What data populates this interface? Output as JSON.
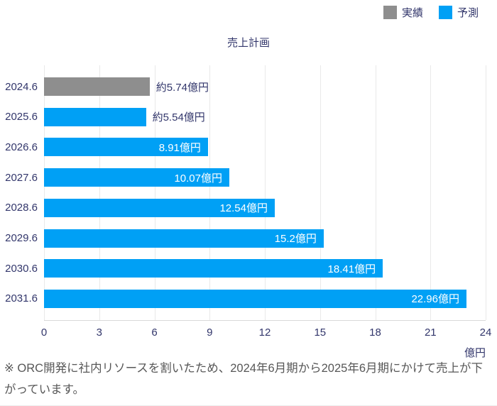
{
  "chart_data": {
    "type": "bar",
    "orientation": "horizontal",
    "title": "売上計画",
    "categories": [
      "2024.6",
      "2025.6",
      "2026.6",
      "2027.6",
      "2028.6",
      "2029.6",
      "2030.6",
      "2031.6"
    ],
    "bars": [
      {
        "category": "2024.6",
        "value": 5.74,
        "label": "約5.74億円",
        "series": "実績",
        "label_position": "outside"
      },
      {
        "category": "2025.6",
        "value": 5.54,
        "label": "約5.54億円",
        "series": "予測",
        "label_position": "outside"
      },
      {
        "category": "2026.6",
        "value": 8.91,
        "label": "8.91億円",
        "series": "予測",
        "label_position": "inside"
      },
      {
        "category": "2027.6",
        "value": 10.07,
        "label": "10.07億円",
        "series": "予測",
        "label_position": "inside"
      },
      {
        "category": "2028.6",
        "value": 12.54,
        "label": "12.54億円",
        "series": "予測",
        "label_position": "inside"
      },
      {
        "category": "2029.6",
        "value": 15.2,
        "label": "15.2億円",
        "series": "予測",
        "label_position": "inside"
      },
      {
        "category": "2030.6",
        "value": 18.41,
        "label": "18.41億円",
        "series": "予測",
        "label_position": "inside"
      },
      {
        "category": "2031.6",
        "value": 22.96,
        "label": "22.96億円",
        "series": "予測",
        "label_position": "inside"
      }
    ],
    "series": [
      {
        "name": "実績",
        "color": "#8e8e8e"
      },
      {
        "name": "予測",
        "color": "#00a0f5"
      }
    ],
    "x_ticks": [
      0,
      3,
      6,
      9,
      12,
      15,
      18,
      21,
      24
    ],
    "xlim": [
      0,
      24
    ],
    "xlabel": "億円",
    "grid": "vertical",
    "legend_position": "top-right"
  },
  "legend": {
    "items": [
      {
        "label": "実績",
        "color": "#8e8e8e"
      },
      {
        "label": "予測",
        "color": "#00a0f5"
      }
    ]
  },
  "footer": {
    "note": "※ ORC開発に社内リソースを割いたため、2024年6月期から2025年6月期にかけて売上が下がっています。"
  },
  "colors": {
    "actual": "#8e8e8e",
    "forecast": "#00a0f5",
    "text": "#32366b",
    "grid": "#e9e9e9",
    "note": "#575757"
  }
}
